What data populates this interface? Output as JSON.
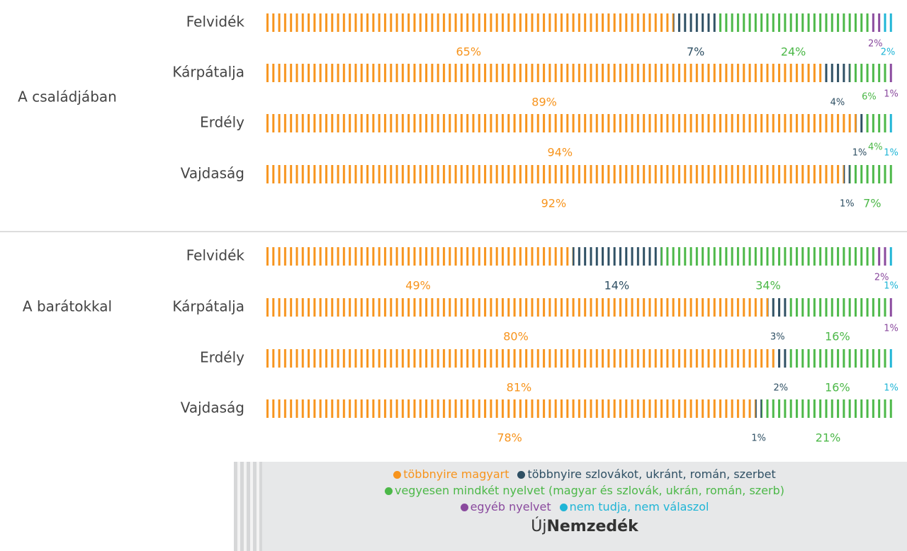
{
  "chart_data": {
    "type": "stacked-bar",
    "xlim": [
      0,
      100
    ],
    "groups": [
      {
        "label": "A családjában",
        "categories": [
          "Felvidék",
          "Kárpátalja",
          "Erdély",
          "Vajdaság"
        ]
      },
      {
        "label": "A barátokkal",
        "categories": [
          "Felvidék",
          "Kárpátalja",
          "Erdély",
          "Vajdaság"
        ]
      }
    ],
    "series": [
      {
        "name": "többnyire magyart",
        "color": "#f7941d",
        "values": [
          65,
          89,
          94,
          92,
          49,
          80,
          81,
          78
        ],
        "value_labels": [
          "65%",
          "89%",
          "94%",
          "92%",
          "49%",
          "80%",
          "81%",
          "78%"
        ]
      },
      {
        "name": "többnyire szlovákot, ukránt, román, szerbet",
        "color": "#2f5064",
        "values": [
          7,
          4,
          1,
          1,
          14,
          3,
          2,
          1
        ],
        "value_labels": [
          "7%",
          "4%",
          "1%",
          "1%",
          "14%",
          "3%",
          "2%",
          "1%"
        ]
      },
      {
        "name": "vegyesen mindkét nyelvet (magyar és szlovák, ukrán, román, szerb)",
        "color": "#4cb848",
        "values": [
          24,
          6,
          4,
          7,
          34,
          16,
          16,
          21
        ],
        "value_labels": [
          "24%",
          "6%",
          "4%",
          "7%",
          "34%",
          "16%",
          "16%",
          "21%"
        ]
      },
      {
        "name": "egyéb nyelvet",
        "color": "#8a4a9e",
        "values": [
          2,
          1,
          null,
          null,
          2,
          1,
          null,
          null
        ],
        "value_labels": [
          "2%",
          "1%",
          null,
          null,
          "2%",
          "1%",
          null,
          null
        ]
      },
      {
        "name": "nem tudja, nem válaszol",
        "color": "#1fb5d6",
        "values": [
          2,
          null,
          1,
          null,
          1,
          null,
          1,
          null
        ],
        "value_labels": [
          "2%",
          null,
          "1%",
          null,
          "1%",
          null,
          "1%",
          null
        ]
      }
    ],
    "logo": {
      "prefix": "Új",
      "name": "Nemzedék"
    }
  }
}
